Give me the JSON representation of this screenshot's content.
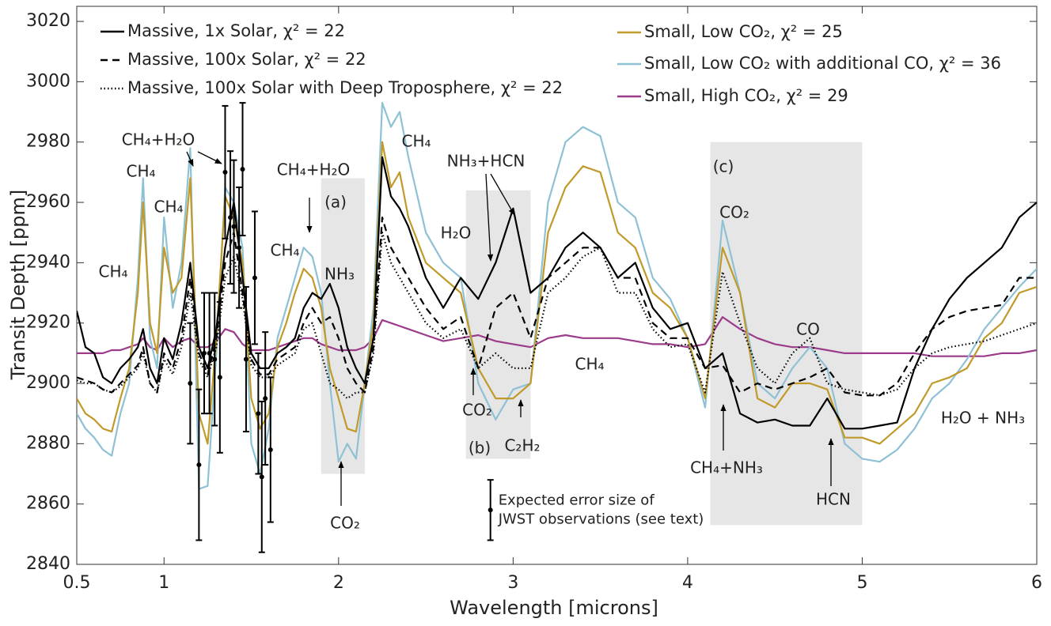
{
  "chart_data": {
    "type": "line",
    "xlabel": "Wavelength [microns]",
    "ylabel": "Transit Depth [ppm]",
    "xlim": [
      0.5,
      6
    ],
    "ylim": [
      2840,
      3025
    ],
    "xticks": [
      0.5,
      1,
      2,
      3,
      4,
      5,
      6
    ],
    "yticks": [
      2840,
      2860,
      2880,
      2900,
      2920,
      2940,
      2960,
      2980,
      3000,
      3020
    ],
    "x": [
      0.5,
      0.55,
      0.6,
      0.65,
      0.7,
      0.75,
      0.8,
      0.85,
      0.88,
      0.92,
      0.96,
      1.0,
      1.05,
      1.1,
      1.15,
      1.2,
      1.25,
      1.3,
      1.35,
      1.4,
      1.45,
      1.5,
      1.55,
      1.6,
      1.65,
      1.7,
      1.75,
      1.8,
      1.85,
      1.9,
      1.95,
      2.0,
      2.05,
      2.1,
      2.15,
      2.2,
      2.25,
      2.3,
      2.35,
      2.4,
      2.5,
      2.6,
      2.7,
      2.8,
      2.9,
      3.0,
      3.1,
      3.2,
      3.3,
      3.4,
      3.5,
      3.6,
      3.7,
      3.8,
      3.9,
      4.0,
      4.1,
      4.2,
      4.3,
      4.4,
      4.5,
      4.6,
      4.7,
      4.8,
      4.9,
      5.0,
      5.1,
      5.2,
      5.3,
      5.4,
      5.5,
      5.6,
      5.7,
      5.8,
      5.9,
      6.0
    ],
    "series": [
      {
        "name": "Massive, 1x Solar, χ² = 22",
        "color": "#000000",
        "dash": "solid",
        "values": [
          2924,
          2912,
          2910,
          2902,
          2900,
          2905,
          2908,
          2912,
          2918,
          2905,
          2900,
          2915,
          2908,
          2920,
          2940,
          2912,
          2905,
          2918,
          2945,
          2960,
          2935,
          2910,
          2905,
          2905,
          2910,
          2912,
          2915,
          2925,
          2930,
          2928,
          2933,
          2925,
          2912,
          2905,
          2900,
          2915,
          2975,
          2962,
          2958,
          2952,
          2935,
          2925,
          2935,
          2928,
          2940,
          2958,
          2930,
          2935,
          2945,
          2950,
          2945,
          2935,
          2940,
          2925,
          2918,
          2920,
          2905,
          2910,
          2890,
          2887,
          2888,
          2886,
          2886,
          2895,
          2885,
          2885,
          2886,
          2887,
          2905,
          2918,
          2928,
          2935,
          2940,
          2945,
          2955,
          2960
        ]
      },
      {
        "name": "Massive, 100x Solar, χ² = 22",
        "color": "#000000",
        "dash": "dashed",
        "values": [
          2902,
          2901,
          2900,
          2898,
          2897,
          2900,
          2903,
          2906,
          2912,
          2900,
          2897,
          2910,
          2905,
          2915,
          2935,
          2910,
          2903,
          2915,
          2940,
          2950,
          2930,
          2908,
          2903,
          2903,
          2908,
          2910,
          2912,
          2920,
          2925,
          2920,
          2922,
          2915,
          2905,
          2900,
          2897,
          2912,
          2955,
          2945,
          2940,
          2935,
          2925,
          2918,
          2922,
          2905,
          2925,
          2930,
          2915,
          2935,
          2940,
          2945,
          2945,
          2935,
          2935,
          2920,
          2915,
          2915,
          2905,
          2906,
          2897,
          2900,
          2898,
          2900,
          2902,
          2905,
          2897,
          2896,
          2896,
          2900,
          2910,
          2918,
          2922,
          2924,
          2925,
          2926,
          2935,
          2935
        ]
      },
      {
        "name": "Massive, 100x Solar with Deep Troposphere, χ² = 22",
        "color": "#000000",
        "dash": "dotted",
        "values": [
          2901,
          2900,
          2900,
          2898,
          2897,
          2899,
          2902,
          2905,
          2910,
          2900,
          2897,
          2908,
          2903,
          2912,
          2930,
          2908,
          2902,
          2912,
          2935,
          2942,
          2928,
          2906,
          2902,
          2902,
          2906,
          2908,
          2910,
          2918,
          2920,
          2910,
          2900,
          2898,
          2895,
          2897,
          2897,
          2910,
          2950,
          2940,
          2935,
          2930,
          2920,
          2915,
          2918,
          2905,
          2910,
          2905,
          2905,
          2930,
          2935,
          2942,
          2945,
          2930,
          2930,
          2918,
          2912,
          2913,
          2897,
          2937,
          2920,
          2905,
          2900,
          2910,
          2915,
          2900,
          2898,
          2897,
          2896,
          2898,
          2905,
          2910,
          2912,
          2913,
          2914,
          2916,
          2918,
          2920
        ]
      },
      {
        "name": "Small, Low CO₂, χ² = 25",
        "color": "#c09a2a",
        "dash": "solid",
        "values": [
          2895,
          2890,
          2888,
          2885,
          2884,
          2895,
          2905,
          2930,
          2960,
          2920,
          2910,
          2945,
          2930,
          2935,
          2968,
          2890,
          2880,
          2915,
          2962,
          2955,
          2940,
          2895,
          2885,
          2890,
          2912,
          2920,
          2930,
          2938,
          2935,
          2925,
          2905,
          2895,
          2885,
          2884,
          2900,
          2920,
          2980,
          2965,
          2970,
          2955,
          2940,
          2935,
          2930,
          2905,
          2895,
          2895,
          2900,
          2950,
          2965,
          2972,
          2970,
          2950,
          2945,
          2930,
          2925,
          2915,
          2895,
          2945,
          2930,
          2895,
          2892,
          2900,
          2900,
          2898,
          2882,
          2882,
          2880,
          2885,
          2890,
          2900,
          2902,
          2905,
          2915,
          2920,
          2930,
          2932
        ]
      },
      {
        "name": "Small, Low CO₂ with additional CO,  χ² = 36",
        "color": "#8fc1d4",
        "dash": "solid",
        "values": [
          2890,
          2885,
          2882,
          2878,
          2876,
          2890,
          2900,
          2935,
          2968,
          2915,
          2905,
          2955,
          2925,
          2940,
          2978,
          2865,
          2866,
          2910,
          2965,
          2960,
          2945,
          2880,
          2870,
          2885,
          2915,
          2925,
          2935,
          2945,
          2942,
          2930,
          2900,
          2874,
          2880,
          2875,
          2900,
          2925,
          2993,
          2985,
          2990,
          2975,
          2950,
          2940,
          2935,
          2900,
          2888,
          2898,
          2900,
          2960,
          2980,
          2985,
          2982,
          2960,
          2955,
          2935,
          2928,
          2915,
          2892,
          2954,
          2930,
          2900,
          2895,
          2905,
          2912,
          2905,
          2880,
          2875,
          2874,
          2878,
          2885,
          2895,
          2900,
          2908,
          2918,
          2925,
          2932,
          2938
        ]
      },
      {
        "name": "Small, High CO₂, χ² = 29",
        "color": "#9b3b8a",
        "dash": "solid",
        "values": [
          2910,
          2910,
          2910,
          2910,
          2911,
          2911,
          2912,
          2913,
          2915,
          2912,
          2911,
          2915,
          2912,
          2914,
          2915,
          2912,
          2912,
          2914,
          2918,
          2917,
          2913,
          2911,
          2911,
          2911,
          2912,
          2913,
          2914,
          2915,
          2915,
          2913,
          2912,
          2911,
          2911,
          2911,
          2912,
          2915,
          2921,
          2920,
          2919,
          2918,
          2916,
          2914,
          2915,
          2916,
          2914,
          2913,
          2912,
          2915,
          2916,
          2915,
          2915,
          2915,
          2914,
          2913,
          2913,
          2912,
          2913,
          2922,
          2918,
          2915,
          2913,
          2912,
          2912,
          2911,
          2910,
          2910,
          2910,
          2910,
          2910,
          2909,
          2909,
          2909,
          2909,
          2910,
          2910,
          2911
        ]
      }
    ],
    "observations": {
      "x": [
        1.15,
        1.2,
        1.23,
        1.26,
        1.29,
        1.32,
        1.35,
        1.38,
        1.4,
        1.43,
        1.45,
        1.47,
        1.52,
        1.54,
        1.56,
        1.58,
        1.61
      ],
      "values": [
        2900,
        2873,
        2910,
        2910,
        2908,
        2902,
        2970,
        2955,
        2952,
        2945,
        2971,
        2908,
        2935,
        2890,
        2869,
        2895,
        2878
      ],
      "errors": [
        20,
        25,
        20,
        20,
        22,
        25,
        22,
        22,
        22,
        20,
        22,
        24,
        22,
        20,
        25,
        22,
        24
      ]
    },
    "error_example": {
      "x": 2.87,
      "value": 2858,
      "error": 10,
      "text": [
        "Expected error size of",
        "JWST observations (see text)"
      ]
    },
    "regions": [
      {
        "label": "(a)",
        "x": [
          1.9,
          2.15
        ],
        "y": [
          2870,
          2968
        ]
      },
      {
        "label": "(b)",
        "x": [
          2.73,
          3.1
        ],
        "y": [
          2875,
          2964
        ]
      },
      {
        "label": "(c)",
        "x": [
          4.13,
          5.0
        ],
        "y": [
          2853,
          2980
        ]
      }
    ],
    "annotations": [
      "CH₄",
      "CH₄",
      "CH₄",
      "CH₄+H₂O",
      "CH₄+H₂O",
      "CH₄",
      "NH₃",
      "CO₂",
      "CH₄",
      "NH₃+HCN",
      "H₂O",
      "CO₂",
      "C₂H₂",
      "CH₄",
      "CO₂",
      "CO",
      "CH₄+NH₃",
      "HCN",
      "H₂O + NH₃"
    ]
  }
}
